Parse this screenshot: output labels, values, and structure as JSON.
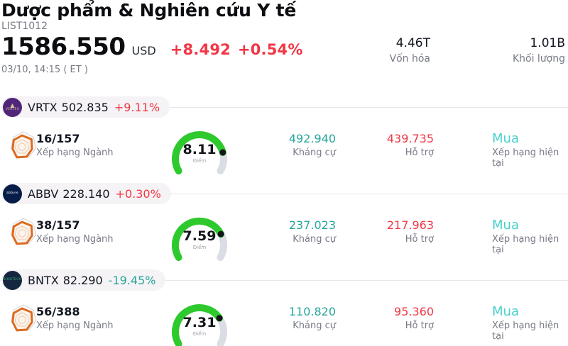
{
  "header": {
    "title": "Dược phẩm & Nghiên cứu Y tế",
    "list_id": "LIST1012",
    "price": "1586.550",
    "currency": "USD",
    "change_abs": "+8.492",
    "change_pct": "+0.54%",
    "change_color": "#f23645",
    "timestamp": "03/10, 14:15 ( ET )",
    "stats": [
      {
        "value": "4.46T",
        "label": "Vốn hóa"
      },
      {
        "value": "1.01B",
        "label": "Khối lượng"
      }
    ]
  },
  "colors": {
    "up_red": "#f23645",
    "down_teal": "#26a69a",
    "resistance_teal": "#26a69a",
    "support_red": "#f23645",
    "rating_cyan": "#48d1cc",
    "gauge_green": "#2dc92d",
    "gauge_track": "#dadde3",
    "gauge_dot": "#15161b",
    "radar_orange": "#dd6a1f",
    "pill_bg": "#f5f3f5"
  },
  "rows": [
    {
      "symbol": "VRTX",
      "price": "502.835",
      "change": "+9.11%",
      "change_color": "#f23645",
      "logo": {
        "bg": "#50267a",
        "mark": "▲",
        "label": "VERTEX",
        "label_color": "#d9c89c"
      },
      "rank": "16/157",
      "rank_label": "Xếp hạng Ngành",
      "score": 8.11,
      "score_display": "8.11",
      "score_label": "Điểm",
      "resistance": {
        "value": "492.940",
        "label": "Kháng cự"
      },
      "support": {
        "value": "439.735",
        "label": "Hỗ trợ"
      },
      "rating": {
        "value": "Mua",
        "label": "Xếp hạng hiện tại"
      }
    },
    {
      "symbol": "ABBV",
      "price": "228.140",
      "change": "+0.30%",
      "change_color": "#f23645",
      "logo": {
        "bg": "#071d49",
        "mark": "",
        "label": "abbvie",
        "label_color": "#ffffff"
      },
      "rank": "38/157",
      "rank_label": "Xếp hạng Ngành",
      "score": 7.59,
      "score_display": "7.59",
      "score_label": "Điểm",
      "resistance": {
        "value": "237.023",
        "label": "Kháng cự"
      },
      "support": {
        "value": "217.963",
        "label": "Hỗ trợ"
      },
      "rating": {
        "value": "Mua",
        "label": "Xếp hạng hiện tại"
      }
    },
    {
      "symbol": "BNTX",
      "price": "82.290",
      "change": "-19.45%",
      "change_color": "#26a69a",
      "logo": {
        "bg": "#152640",
        "mark": "",
        "label": "BIONTECH",
        "label_color": "#35b37e"
      },
      "rank": "56/388",
      "rank_label": "Xếp hạng Ngành",
      "score": 7.31,
      "score_display": "7.31",
      "score_label": "Điểm",
      "resistance": {
        "value": "110.820",
        "label": "Kháng cự"
      },
      "support": {
        "value": "95.360",
        "label": "Hỗ trợ"
      },
      "rating": {
        "value": "Mua",
        "label": "Xếp hạng hiện tại"
      }
    }
  ]
}
